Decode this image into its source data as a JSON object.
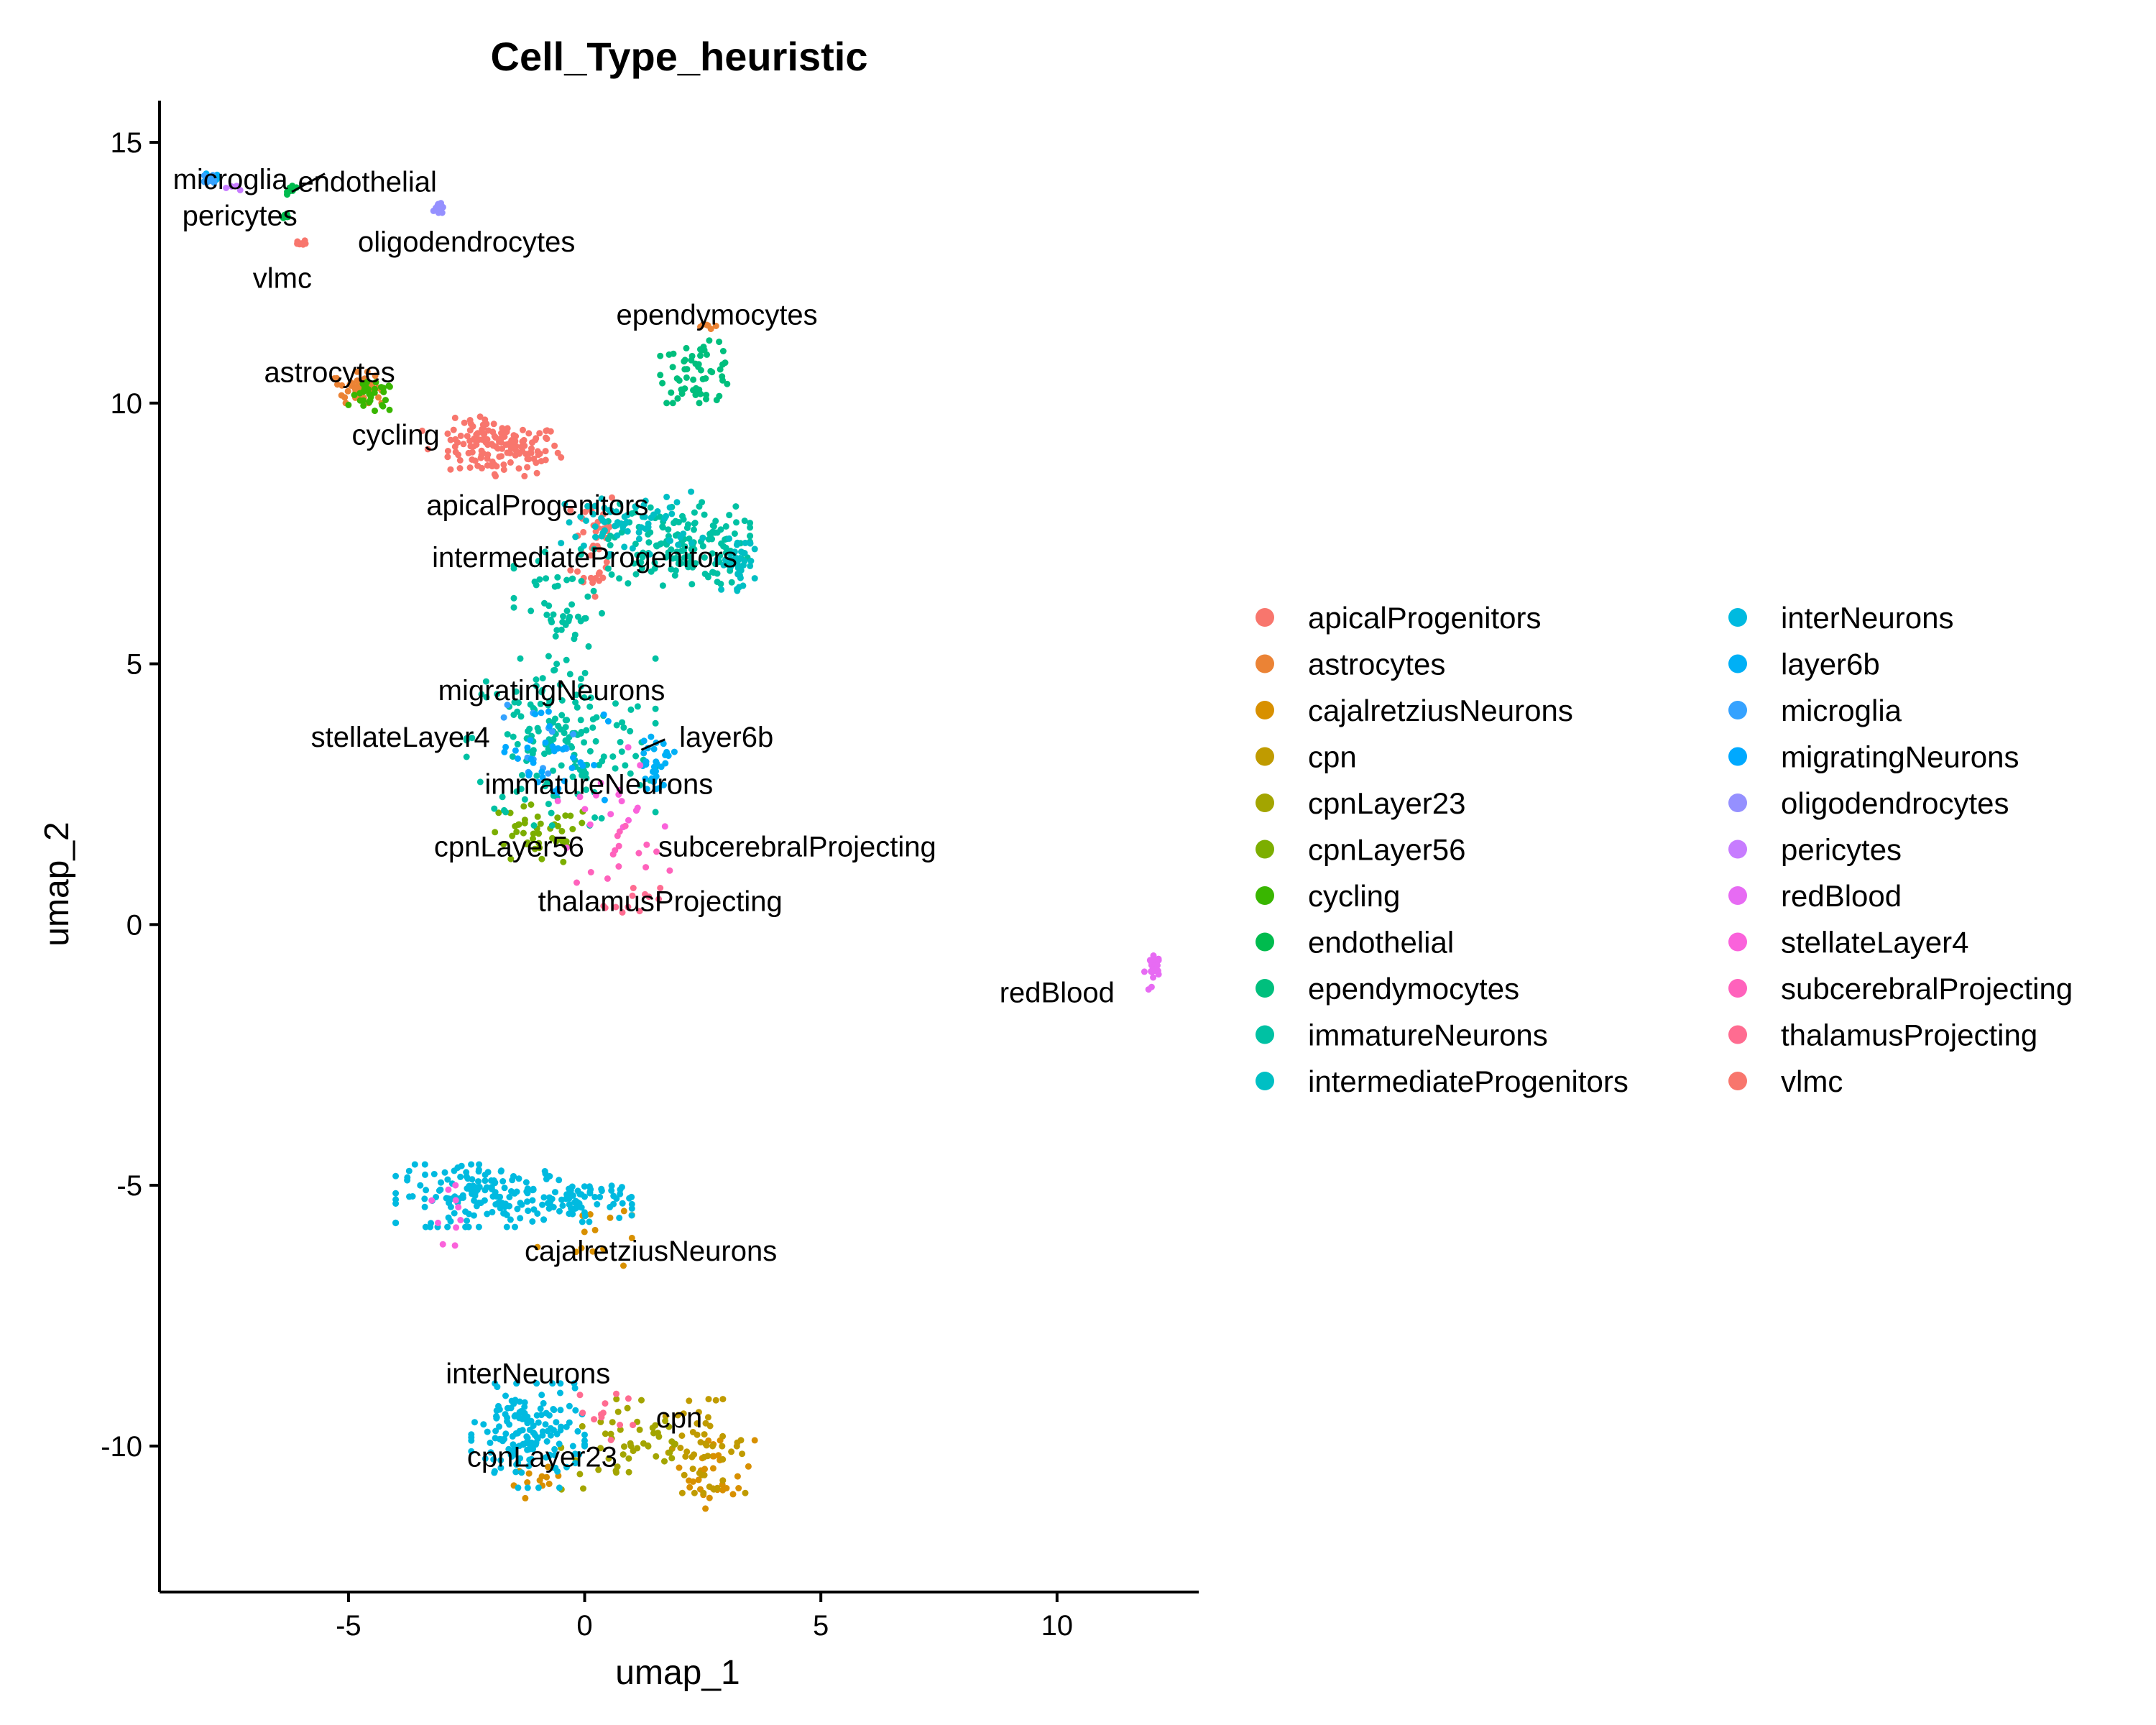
{
  "chart_data": {
    "type": "scatter",
    "title": "Cell_Type_heuristic",
    "xlabel": "umap_1",
    "ylabel": "umap_2",
    "xlim": [
      -9,
      13
    ],
    "ylim": [
      -12.8,
      15.8
    ],
    "xticks": [
      -5,
      0,
      5,
      10
    ],
    "yticks": [
      -10,
      -5,
      0,
      5,
      10,
      15
    ],
    "xtick_labels": [
      "-5",
      "0",
      "5",
      "10"
    ],
    "ytick_labels": [
      "-10",
      "-5",
      "0",
      "5",
      "10",
      "15"
    ],
    "grid": false,
    "legend_position": "right",
    "legend_columns": 2,
    "series": [
      {
        "name": "apicalProgenitors",
        "color": "#F8766D",
        "clusters": [
          {
            "cx": -1.7,
            "cy": 9.1,
            "rx": 1.2,
            "ry": 0.5,
            "n": 120
          },
          {
            "cx": 0.2,
            "cy": 7.3,
            "rx": 0.5,
            "ry": 1.2,
            "n": 40
          }
        ]
      },
      {
        "name": "astrocytes",
        "color": "#EB8335",
        "clusters": [
          {
            "cx": -4.8,
            "cy": 10.3,
            "rx": 0.5,
            "ry": 0.3,
            "n": 45
          },
          {
            "cx": 2.6,
            "cy": 11.5,
            "rx": 0.2,
            "ry": 0.1,
            "n": 6
          }
        ]
      },
      {
        "name": "cajalretziusNeurons",
        "color": "#D89000",
        "clusters": [
          {
            "cx": 0.0,
            "cy": -5.9,
            "rx": 1.0,
            "ry": 0.8,
            "n": 15
          },
          {
            "cx": 2.8,
            "cy": -10.5,
            "rx": 0.8,
            "ry": 0.7,
            "n": 30
          },
          {
            "cx": -1.0,
            "cy": -10.7,
            "rx": 0.5,
            "ry": 0.3,
            "n": 12
          }
        ]
      },
      {
        "name": "cpn",
        "color": "#C09B00",
        "clusters": [
          {
            "cx": 2.5,
            "cy": -10.0,
            "rx": 0.9,
            "ry": 0.9,
            "n": 50
          }
        ]
      },
      {
        "name": "cpnLayer23",
        "color": "#A3A500",
        "clusters": [
          {
            "cx": 1.0,
            "cy": -10.0,
            "rx": 1.5,
            "ry": 0.9,
            "n": 50
          }
        ]
      },
      {
        "name": "cpnLayer56",
        "color": "#7CAE00",
        "clusters": [
          {
            "cx": -1.0,
            "cy": 1.7,
            "rx": 1.2,
            "ry": 0.6,
            "n": 45
          }
        ]
      },
      {
        "name": "cycling",
        "color": "#39B600",
        "clusters": [
          {
            "cx": -4.5,
            "cy": 10.1,
            "rx": 0.5,
            "ry": 0.3,
            "n": 30
          }
        ]
      },
      {
        "name": "endothelial",
        "color": "#00BB4E",
        "clusters": [
          {
            "cx": -6.2,
            "cy": 14.1,
            "rx": 0.1,
            "ry": 0.1,
            "n": 12
          },
          {
            "cx": -6.3,
            "cy": 13.6,
            "rx": 0.1,
            "ry": 0.1,
            "n": 6
          }
        ]
      },
      {
        "name": "ependymocytes",
        "color": "#00BF7D",
        "clusters": [
          {
            "cx": 2.4,
            "cy": 10.6,
            "rx": 0.8,
            "ry": 0.6,
            "n": 60
          }
        ]
      },
      {
        "name": "immatureNeurons",
        "color": "#00C1A3",
        "clusters": [
          {
            "cx": -0.5,
            "cy": 3.5,
            "rx": 2.0,
            "ry": 1.6,
            "n": 160
          },
          {
            "cx": 2.0,
            "cy": 7.3,
            "rx": 1.5,
            "ry": 0.8,
            "n": 150
          },
          {
            "cx": -0.5,
            "cy": 6.0,
            "rx": 1.0,
            "ry": 1.2,
            "n": 50
          }
        ]
      },
      {
        "name": "intermediateProgenitors",
        "color": "#00BFC4",
        "clusters": [
          {
            "cx": 1.0,
            "cy": 7.7,
            "rx": 1.5,
            "ry": 0.6,
            "n": 70
          },
          {
            "cx": 3.2,
            "cy": 6.9,
            "rx": 0.4,
            "ry": 0.5,
            "n": 40
          }
        ]
      },
      {
        "name": "interNeurons",
        "color": "#00BAE0",
        "clusters": [
          {
            "cx": -2.0,
            "cy": -5.2,
            "rx": 2.0,
            "ry": 0.6,
            "n": 160
          },
          {
            "cx": 0.0,
            "cy": -5.3,
            "rx": 1.0,
            "ry": 0.4,
            "n": 60
          },
          {
            "cx": -1.2,
            "cy": -9.8,
            "rx": 1.2,
            "ry": 1.0,
            "n": 160
          }
        ]
      },
      {
        "name": "layer6b",
        "color": "#00B0F6",
        "clusters": [
          {
            "cx": -7.9,
            "cy": 14.3,
            "rx": 0.15,
            "ry": 0.1,
            "n": 10
          },
          {
            "cx": 1.5,
            "cy": 3.1,
            "rx": 0.4,
            "ry": 0.5,
            "n": 30
          }
        ]
      },
      {
        "name": "microglia",
        "color": "#35A2FF",
        "clusters": [
          {
            "cx": -7.9,
            "cy": 14.3,
            "rx": 0.15,
            "ry": 0.1,
            "n": 10
          },
          {
            "cx": -1.0,
            "cy": 3.5,
            "rx": 0.8,
            "ry": 0.8,
            "n": 12
          }
        ]
      },
      {
        "name": "migratingNeurons",
        "color": "#00A9FF",
        "clusters": [
          {
            "cx": -0.7,
            "cy": 3.3,
            "rx": 1.2,
            "ry": 1.0,
            "n": 35
          }
        ]
      },
      {
        "name": "oligodendrocytes",
        "color": "#9590FF",
        "clusters": [
          {
            "cx": -3.1,
            "cy": 13.8,
            "rx": 0.1,
            "ry": 0.15,
            "n": 14
          }
        ]
      },
      {
        "name": "pericytes",
        "color": "#C77CFF",
        "clusters": [
          {
            "cx": -7.5,
            "cy": 14.1,
            "rx": 0.3,
            "ry": 0.1,
            "n": 4
          }
        ]
      },
      {
        "name": "redBlood",
        "color": "#E76BF3",
        "clusters": [
          {
            "cx": 12.0,
            "cy": -0.9,
            "rx": 0.15,
            "ry": 0.4,
            "n": 22
          }
        ]
      },
      {
        "name": "stellateLayer4",
        "color": "#FA62DB",
        "clusters": [
          {
            "cx": 0.5,
            "cy": 2.4,
            "rx": 1.2,
            "ry": 1.0,
            "n": 18
          },
          {
            "cx": -3.0,
            "cy": -5.8,
            "rx": 0.4,
            "ry": 0.8,
            "n": 10
          }
        ]
      },
      {
        "name": "subcerebralProjecting",
        "color": "#FF62BC",
        "clusters": [
          {
            "cx": 0.8,
            "cy": 1.2,
            "rx": 1.0,
            "ry": 0.8,
            "n": 15
          }
        ]
      },
      {
        "name": "thalamusProjecting",
        "color": "#FF6C91",
        "clusters": [
          {
            "cx": 1.0,
            "cy": 0.4,
            "rx": 0.6,
            "ry": 0.3,
            "n": 12
          },
          {
            "cx": 0.5,
            "cy": -9.5,
            "rx": 0.6,
            "ry": 0.6,
            "n": 12
          }
        ]
      },
      {
        "name": "vlmc",
        "color": "#F8766D",
        "clusters": [
          {
            "cx": -6.0,
            "cy": 13.1,
            "rx": 0.15,
            "ry": 0.1,
            "n": 8
          },
          {
            "cx": -2.5,
            "cy": 9.4,
            "rx": 1.0,
            "ry": 0.4,
            "n": 25
          }
        ]
      }
    ],
    "annotations": [
      {
        "text": "microglia",
        "x": -7.5,
        "y": 14.3
      },
      {
        "text": "endothelial",
        "x": -4.6,
        "y": 14.25
      },
      {
        "text": "pericytes",
        "x": -7.3,
        "y": 13.6
      },
      {
        "text": "oligodendrocytes",
        "x": -2.5,
        "y": 13.1
      },
      {
        "text": "vlmc",
        "x": -6.4,
        "y": 12.4
      },
      {
        "text": "ependymocytes",
        "x": 2.8,
        "y": 11.7
      },
      {
        "text": "astrocytes",
        "x": -5.4,
        "y": 10.6
      },
      {
        "text": "cycling",
        "x": -4.0,
        "y": 9.4
      },
      {
        "text": "apicalProgenitors",
        "x": -1.0,
        "y": 8.05
      },
      {
        "text": "intermediateProgenitors",
        "x": 0.0,
        "y": 7.05
      },
      {
        "text": "migratingNeurons",
        "x": -0.7,
        "y": 4.5
      },
      {
        "text": "stellateLayer4",
        "x": -3.9,
        "y": 3.6
      },
      {
        "text": "layer6b",
        "x": 3.0,
        "y": 3.6
      },
      {
        "text": "immatureNeurons",
        "x": 0.3,
        "y": 2.7
      },
      {
        "text": "cpnLayer56",
        "x": -1.6,
        "y": 1.5
      },
      {
        "text": "subcerebralProjecting",
        "x": 4.5,
        "y": 1.5
      },
      {
        "text": "thalamusProjecting",
        "x": 1.6,
        "y": 0.45
      },
      {
        "text": "redBlood",
        "x": 10.0,
        "y": -1.3
      },
      {
        "text": "cajalretziusNeurons",
        "x": 1.4,
        "y": -6.25
      },
      {
        "text": "interNeurons",
        "x": -1.2,
        "y": -8.6
      },
      {
        "text": "cpn",
        "x": 2.0,
        "y": -9.45
      },
      {
        "text": "cpnLayer23",
        "x": -0.9,
        "y": -10.2
      }
    ],
    "leader_lines": [
      {
        "from": [
          -5.5,
          14.4
        ],
        "to": [
          -6.2,
          14.05
        ]
      },
      {
        "from": [
          1.7,
          3.55
        ],
        "to": [
          1.2,
          3.35
        ]
      }
    ]
  }
}
